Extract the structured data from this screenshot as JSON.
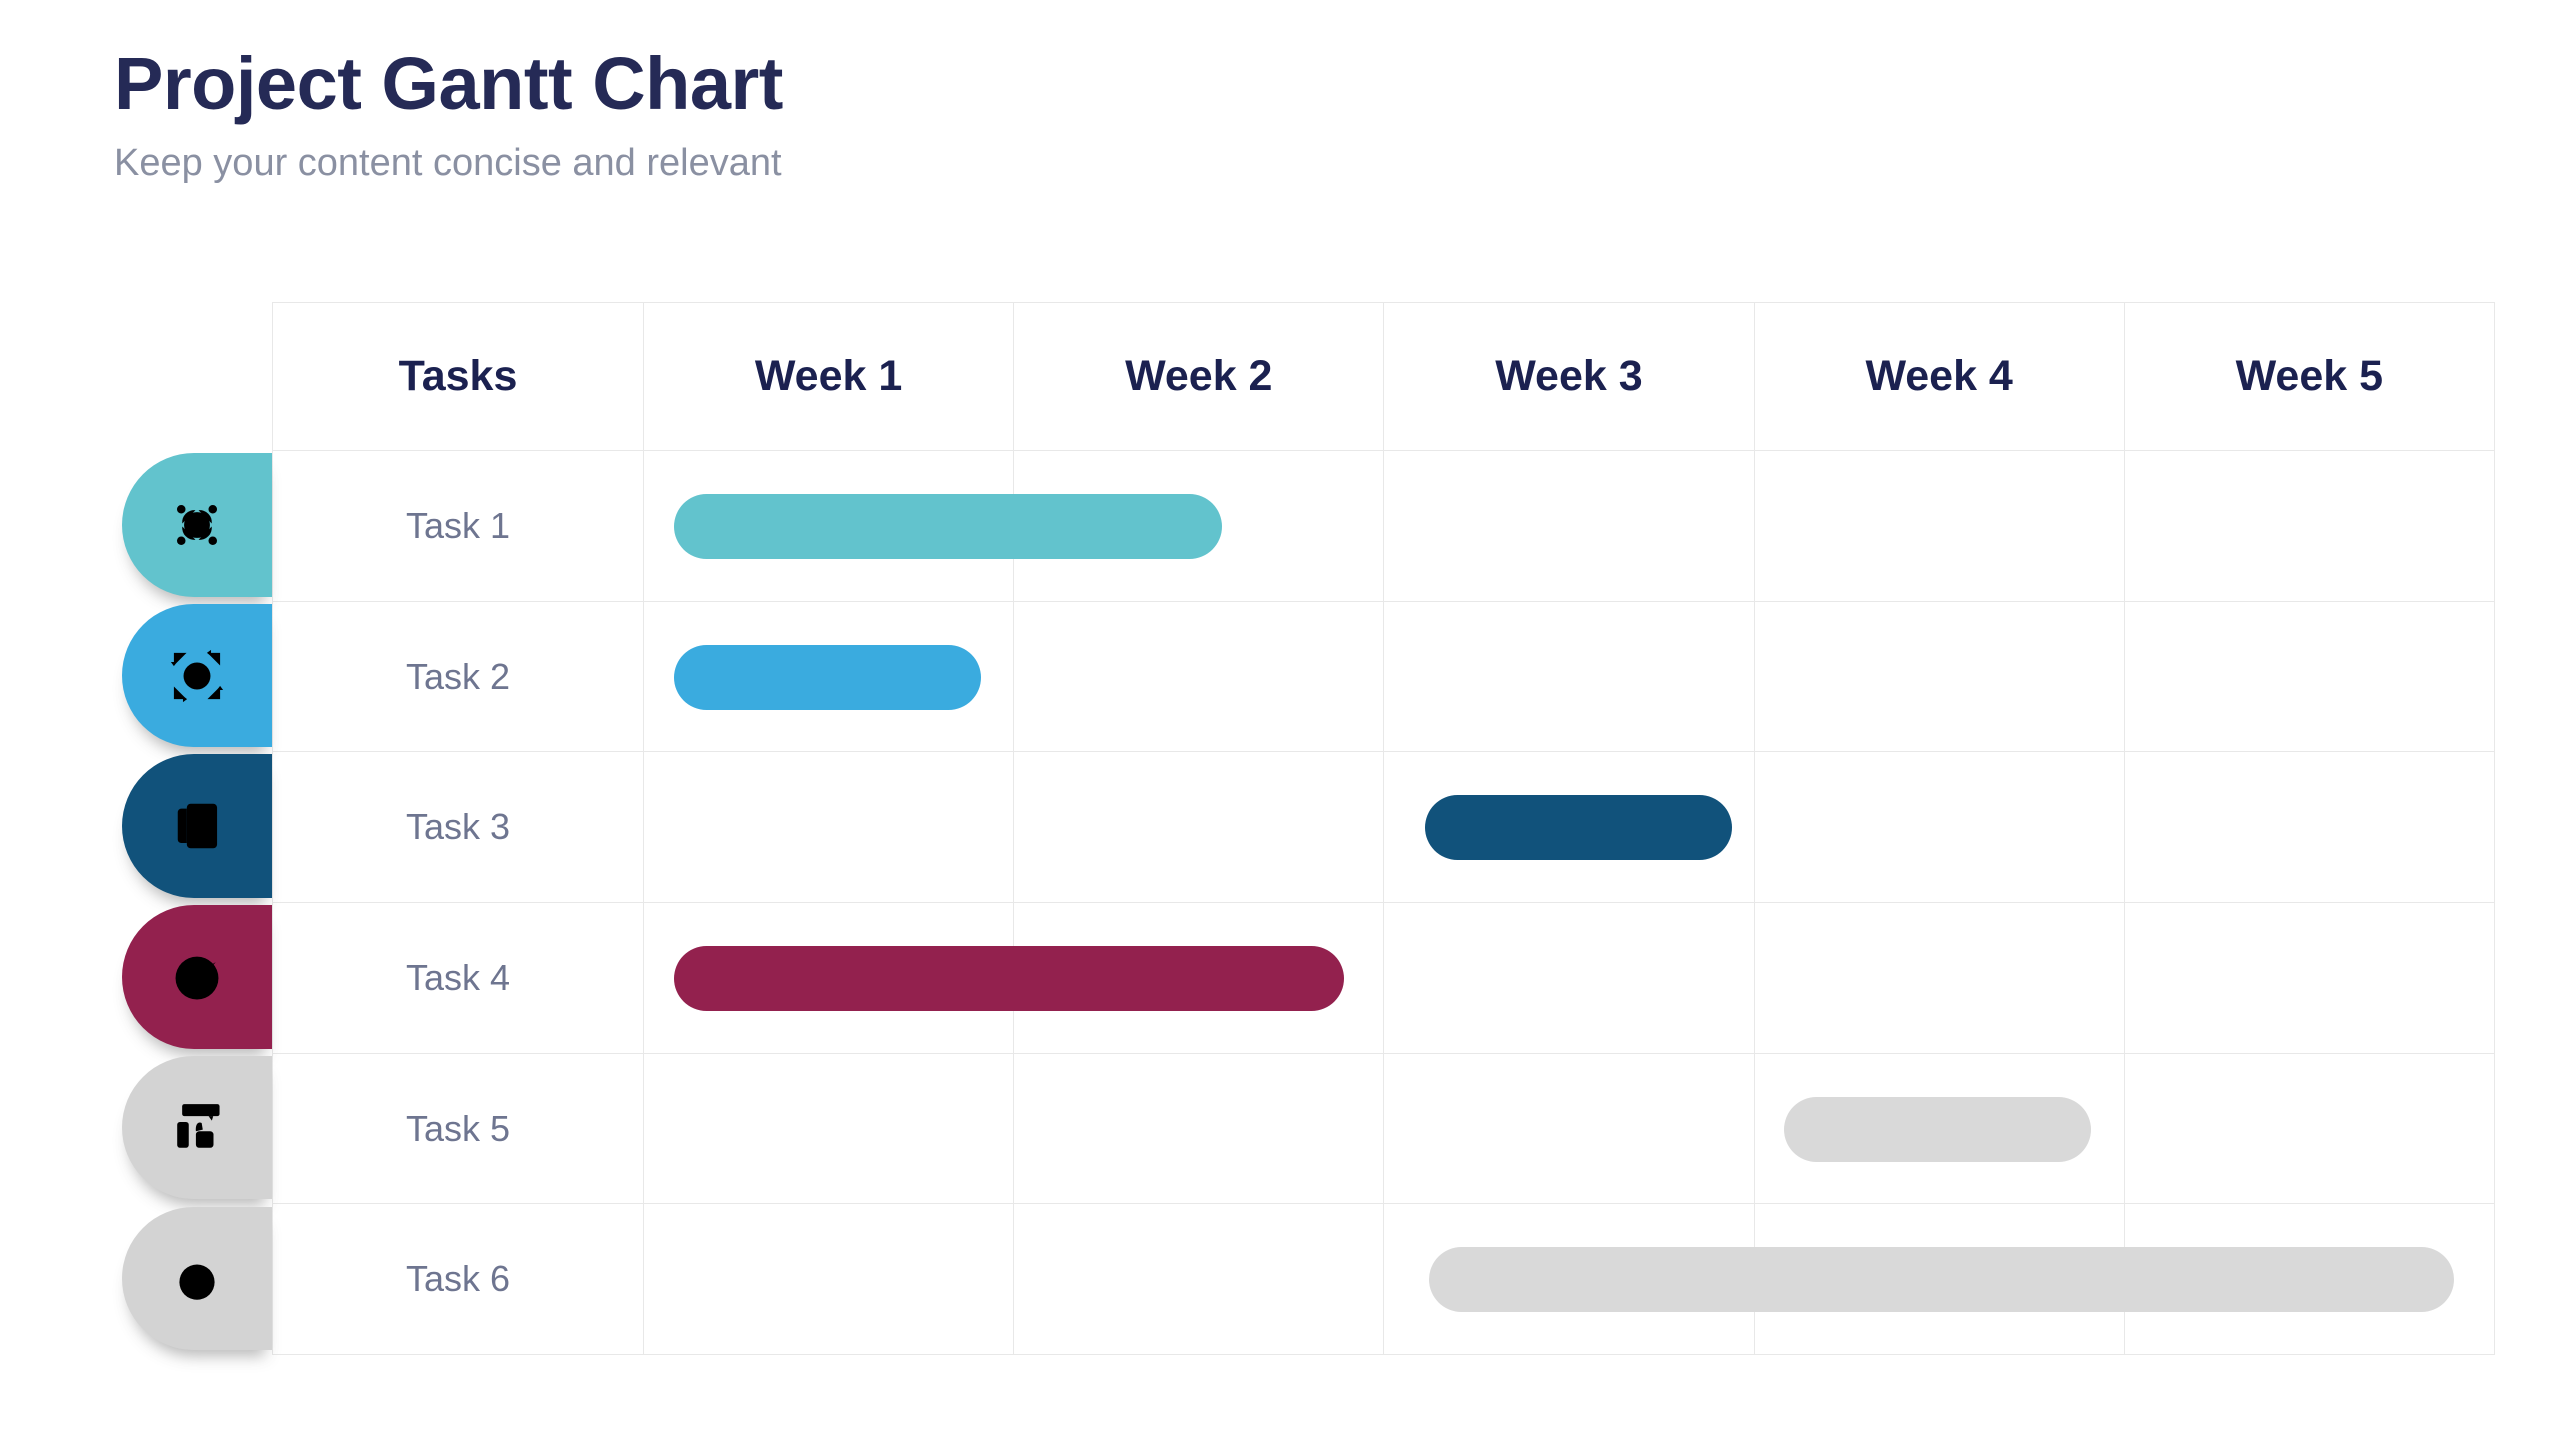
{
  "page": {
    "title": "Project Gantt Chart",
    "subtitle": "Keep your content concise and relevant"
  },
  "colors": {
    "background": "#ffffff",
    "title_text": "#252a56",
    "subtitle_text": "#8a90a2",
    "header_text": "#1b2150",
    "task_label_text": "#6e7590",
    "grid_line": "#e8e8e8",
    "teal": "#62c3cd",
    "sky_blue": "#3aabdf",
    "navy": "#11527b",
    "maroon": "#93214e",
    "inactive_gray": "#d9d9d9"
  },
  "chart_data": {
    "type": "gantt",
    "title": "Project Gantt Chart",
    "columns": [
      "Tasks",
      "Week 1",
      "Week 2",
      "Week 3",
      "Week 4",
      "Week 5"
    ],
    "weeks_shown": 5,
    "grid": true,
    "tasks": [
      {
        "label": "Task 1",
        "icon": "money-network-icon",
        "bar_color": "#62c3cd",
        "pill_color": "#62c3cd",
        "start_week": 1.08,
        "end_week": 2.56
      },
      {
        "label": "Task 2",
        "icon": "idea-gear-icon",
        "bar_color": "#3aabdf",
        "pill_color": "#3aabdf",
        "start_week": 1.08,
        "end_week": 1.91
      },
      {
        "label": "Task 3",
        "icon": "report-chart-icon",
        "bar_color": "#11527b",
        "pill_color": "#11527b",
        "start_week": 3.11,
        "end_week": 3.94
      },
      {
        "label": "Task 4",
        "icon": "check-circle-icon",
        "bar_color": "#93214e",
        "pill_color": "#93214e",
        "start_week": 1.08,
        "end_week": 2.89
      },
      {
        "label": "Task 5",
        "icon": "rating-thumbs-up-icon",
        "bar_color": "#d9d9d9",
        "pill_color": "#d3d3d3",
        "start_week": 4.08,
        "end_week": 4.91
      },
      {
        "label": "Task 6",
        "icon": "stopwatch-check-icon",
        "bar_color": "#d9d9d9",
        "pill_color": "#d3d3d3",
        "start_week": 3.12,
        "end_week": 5.89
      }
    ]
  }
}
